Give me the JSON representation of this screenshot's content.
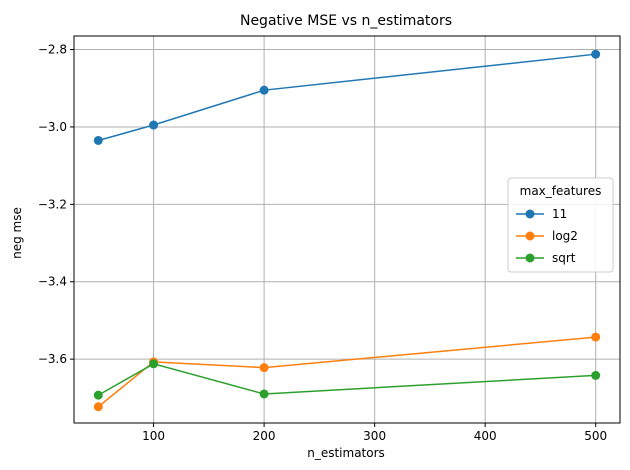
{
  "chart_data": {
    "type": "line",
    "title": "Negative MSE vs n_estimators",
    "xlabel": "n_estimators",
    "ylabel": "neg mse",
    "xlim": [
      28,
      522
    ],
    "ylim": [
      -3.765,
      -2.765
    ],
    "xticks": [
      100,
      200,
      300,
      400,
      500
    ],
    "yticks": [
      -3.6,
      -3.4,
      -3.2,
      -3.0,
      -2.8
    ],
    "ytick_labels": [
      "−3.6",
      "−3.4",
      "−3.2",
      "−3.0",
      "−2.8"
    ],
    "grid": true,
    "legend": {
      "title": "max_features",
      "position": "center-right"
    },
    "x": [
      50,
      100,
      200,
      500
    ],
    "series": [
      {
        "name": "11",
        "color": "#1f77b4",
        "values": [
          -3.035,
          -2.995,
          -2.905,
          -2.812
        ]
      },
      {
        "name": "log2",
        "color": "#ff7f0e",
        "values": [
          -3.723,
          -3.607,
          -3.622,
          -3.543
        ]
      },
      {
        "name": "sqrt",
        "color": "#2ca02c",
        "values": [
          -3.693,
          -3.612,
          -3.69,
          -3.642
        ]
      }
    ]
  }
}
